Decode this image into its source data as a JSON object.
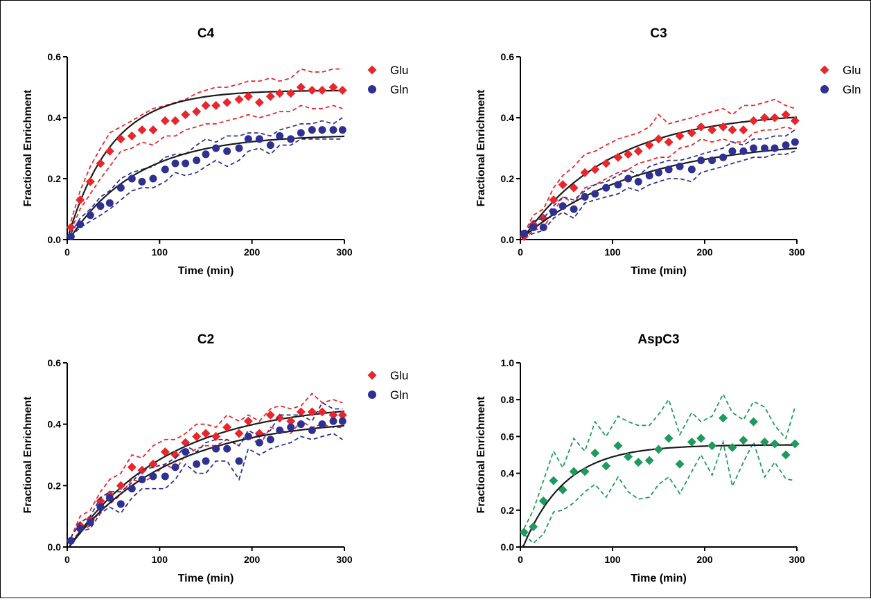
{
  "colors": {
    "glu": "#e8262b",
    "gln": "#2e3192",
    "asp": "#1e9a5e",
    "fit": "#1a1a1a"
  },
  "chart_data": [
    {
      "type": "scatter",
      "title": "C4",
      "xlabel": "Time (min)",
      "ylabel": "Fractional Enrichment",
      "xlim": [
        0,
        300
      ],
      "ylim": [
        0,
        0.6
      ],
      "xticks": [
        "0",
        "100",
        "200",
        "300"
      ],
      "yticks": [
        "0.0",
        "0.2",
        "0.4",
        "0.6"
      ],
      "legend_position": "right",
      "grid": false,
      "x": [
        4,
        14,
        25,
        36,
        46,
        58,
        70,
        81,
        93,
        106,
        117,
        128,
        140,
        150,
        161,
        173,
        186,
        196,
        208,
        220,
        230,
        242,
        253,
        265,
        276,
        288,
        298
      ],
      "series": [
        {
          "name": "Glu",
          "marker": "diamond",
          "color": "#e8262b",
          "y": [
            0.04,
            0.13,
            0.19,
            0.25,
            0.29,
            0.33,
            0.34,
            0.36,
            0.36,
            0.39,
            0.39,
            0.41,
            0.42,
            0.44,
            0.44,
            0.45,
            0.46,
            0.47,
            0.45,
            0.47,
            0.48,
            0.48,
            0.5,
            0.49,
            0.49,
            0.5,
            0.49
          ],
          "upper": [
            0.06,
            0.16,
            0.24,
            0.3,
            0.35,
            0.37,
            0.39,
            0.41,
            0.43,
            0.44,
            0.45,
            0.46,
            0.48,
            0.49,
            0.5,
            0.5,
            0.51,
            0.52,
            0.52,
            0.53,
            0.52,
            0.53,
            0.56,
            0.55,
            0.55,
            0.56,
            0.56
          ],
          "lower": [
            0.03,
            0.1,
            0.15,
            0.2,
            0.24,
            0.29,
            0.3,
            0.32,
            0.31,
            0.34,
            0.34,
            0.36,
            0.37,
            0.38,
            0.38,
            0.39,
            0.4,
            0.41,
            0.4,
            0.41,
            0.42,
            0.42,
            0.44,
            0.43,
            0.43,
            0.44,
            0.43
          ],
          "fit": {
            "plateau": 0.49,
            "rate": 0.021,
            "t0": 0
          }
        },
        {
          "name": "Gln",
          "marker": "circle",
          "color": "#2e3192",
          "y": [
            0.01,
            0.05,
            0.08,
            0.11,
            0.12,
            0.17,
            0.2,
            0.19,
            0.2,
            0.23,
            0.25,
            0.25,
            0.26,
            0.28,
            0.3,
            0.29,
            0.3,
            0.33,
            0.33,
            0.31,
            0.34,
            0.33,
            0.35,
            0.36,
            0.36,
            0.36,
            0.36
          ],
          "upper": [
            0.02,
            0.07,
            0.1,
            0.14,
            0.16,
            0.2,
            0.22,
            0.23,
            0.24,
            0.27,
            0.28,
            0.28,
            0.31,
            0.33,
            0.32,
            0.34,
            0.34,
            0.35,
            0.35,
            0.34,
            0.36,
            0.37,
            0.38,
            0.38,
            0.39,
            0.38,
            0.4
          ],
          "lower": [
            0.01,
            0.04,
            0.06,
            0.08,
            0.1,
            0.13,
            0.16,
            0.17,
            0.17,
            0.19,
            0.22,
            0.21,
            0.22,
            0.24,
            0.26,
            0.24,
            0.26,
            0.29,
            0.3,
            0.28,
            0.31,
            0.31,
            0.33,
            0.33,
            0.33,
            0.33,
            0.33
          ],
          "fit": {
            "plateau": 0.345,
            "rate": 0.0135,
            "t0": 2
          }
        }
      ]
    },
    {
      "type": "scatter",
      "title": "C3",
      "xlabel": "Time (min)",
      "ylabel": "Fractional Enrichment",
      "xlim": [
        0,
        300
      ],
      "ylim": [
        0,
        0.6
      ],
      "xticks": [
        "0",
        "100",
        "200",
        "300"
      ],
      "yticks": [
        "0.0",
        "0.2",
        "0.4",
        "0.6"
      ],
      "legend_position": "right",
      "grid": false,
      "x": [
        4,
        14,
        25,
        36,
        46,
        58,
        70,
        81,
        93,
        106,
        117,
        128,
        140,
        150,
        161,
        173,
        186,
        196,
        208,
        220,
        230,
        242,
        253,
        265,
        276,
        288,
        298
      ],
      "series": [
        {
          "name": "Glu",
          "marker": "diamond",
          "color": "#e8262b",
          "y": [
            0.01,
            0.05,
            0.07,
            0.13,
            0.18,
            0.17,
            0.22,
            0.23,
            0.25,
            0.27,
            0.28,
            0.29,
            0.31,
            0.33,
            0.32,
            0.34,
            0.35,
            0.37,
            0.36,
            0.37,
            0.36,
            0.36,
            0.39,
            0.4,
            0.4,
            0.41,
            0.39
          ],
          "upper": [
            0.02,
            0.08,
            0.1,
            0.17,
            0.21,
            0.24,
            0.28,
            0.29,
            0.31,
            0.33,
            0.34,
            0.35,
            0.37,
            0.41,
            0.38,
            0.39,
            0.4,
            0.41,
            0.42,
            0.43,
            0.41,
            0.44,
            0.44,
            0.45,
            0.46,
            0.44,
            0.43
          ],
          "lower": [
            0.0,
            0.03,
            0.04,
            0.09,
            0.14,
            0.12,
            0.17,
            0.18,
            0.2,
            0.22,
            0.23,
            0.25,
            0.26,
            0.27,
            0.27,
            0.3,
            0.31,
            0.33,
            0.32,
            0.33,
            0.32,
            0.32,
            0.35,
            0.36,
            0.36,
            0.37,
            0.36
          ],
          "fit": {
            "plateau": 0.42,
            "rate": 0.0105,
            "t0": 2
          }
        },
        {
          "name": "Gln",
          "marker": "circle",
          "color": "#2e3192",
          "y": [
            0.02,
            0.04,
            0.04,
            0.09,
            0.11,
            0.1,
            0.14,
            0.15,
            0.17,
            0.18,
            0.2,
            0.19,
            0.21,
            0.22,
            0.23,
            0.24,
            0.23,
            0.26,
            0.26,
            0.27,
            0.29,
            0.29,
            0.3,
            0.3,
            0.3,
            0.31,
            0.32
          ],
          "upper": [
            0.02,
            0.06,
            0.07,
            0.11,
            0.14,
            0.13,
            0.16,
            0.18,
            0.19,
            0.21,
            0.23,
            0.21,
            0.24,
            0.25,
            0.26,
            0.26,
            0.27,
            0.28,
            0.29,
            0.3,
            0.32,
            0.31,
            0.33,
            0.33,
            0.34,
            0.34,
            0.36
          ],
          "lower": [
            0.01,
            0.02,
            0.03,
            0.07,
            0.09,
            0.07,
            0.12,
            0.13,
            0.14,
            0.15,
            0.17,
            0.16,
            0.18,
            0.19,
            0.2,
            0.2,
            0.19,
            0.22,
            0.23,
            0.24,
            0.25,
            0.26,
            0.27,
            0.27,
            0.28,
            0.28,
            0.29
          ],
          "fit": {
            "plateau": 0.33,
            "rate": 0.008,
            "t0": 0
          }
        }
      ]
    },
    {
      "type": "scatter",
      "title": "C2",
      "xlabel": "Time (min)",
      "ylabel": "Fractional Enrichment",
      "xlim": [
        0,
        300
      ],
      "ylim": [
        0,
        0.6
      ],
      "xticks": [
        "0",
        "100",
        "200",
        "300"
      ],
      "yticks": [
        "0.0",
        "0.2",
        "0.4",
        "0.6"
      ],
      "legend_position": "right",
      "grid": false,
      "x": [
        4,
        14,
        25,
        36,
        46,
        58,
        70,
        81,
        93,
        106,
        117,
        128,
        140,
        150,
        161,
        173,
        186,
        196,
        208,
        220,
        230,
        242,
        253,
        265,
        276,
        288,
        298
      ],
      "series": [
        {
          "name": "Glu",
          "marker": "diamond",
          "color": "#e8262b",
          "y": [
            0.02,
            0.07,
            0.09,
            0.15,
            0.17,
            0.2,
            0.26,
            0.25,
            0.27,
            0.31,
            0.3,
            0.34,
            0.36,
            0.37,
            0.36,
            0.39,
            0.37,
            0.41,
            0.37,
            0.43,
            0.42,
            0.41,
            0.44,
            0.44,
            0.44,
            0.43,
            0.43
          ],
          "upper": [
            0.03,
            0.1,
            0.12,
            0.18,
            0.22,
            0.24,
            0.3,
            0.29,
            0.33,
            0.35,
            0.35,
            0.37,
            0.4,
            0.4,
            0.39,
            0.43,
            0.41,
            0.43,
            0.41,
            0.45,
            0.46,
            0.45,
            0.46,
            0.5,
            0.47,
            0.48,
            0.47
          ],
          "lower": [
            0.02,
            0.05,
            0.07,
            0.12,
            0.14,
            0.17,
            0.22,
            0.21,
            0.23,
            0.27,
            0.25,
            0.3,
            0.32,
            0.33,
            0.33,
            0.35,
            0.33,
            0.37,
            0.33,
            0.39,
            0.38,
            0.37,
            0.41,
            0.39,
            0.4,
            0.39,
            0.39
          ],
          "fit": {
            "plateau": 0.47,
            "rate": 0.0095,
            "t0": 2
          }
        },
        {
          "name": "Gln",
          "marker": "circle",
          "color": "#2e3192",
          "y": [
            0.02,
            0.06,
            0.08,
            0.13,
            0.16,
            0.14,
            0.19,
            0.22,
            0.23,
            0.23,
            0.26,
            0.31,
            0.27,
            0.28,
            0.32,
            0.32,
            0.28,
            0.36,
            0.34,
            0.35,
            0.38,
            0.39,
            0.4,
            0.38,
            0.4,
            0.41,
            0.41
          ],
          "upper": [
            0.03,
            0.08,
            0.1,
            0.16,
            0.18,
            0.18,
            0.21,
            0.25,
            0.26,
            0.27,
            0.29,
            0.33,
            0.31,
            0.34,
            0.35,
            0.35,
            0.33,
            0.38,
            0.36,
            0.38,
            0.43,
            0.43,
            0.43,
            0.41,
            0.47,
            0.45,
            0.45
          ],
          "lower": [
            0.01,
            0.05,
            0.06,
            0.11,
            0.13,
            0.11,
            0.16,
            0.19,
            0.19,
            0.19,
            0.22,
            0.27,
            0.24,
            0.24,
            0.28,
            0.28,
            0.22,
            0.32,
            0.3,
            0.32,
            0.33,
            0.34,
            0.36,
            0.35,
            0.36,
            0.37,
            0.35
          ],
          "fit": {
            "plateau": 0.42,
            "rate": 0.0095,
            "t0": 2
          }
        }
      ]
    },
    {
      "type": "scatter",
      "title": "AspC3",
      "xlabel": "Time (min)",
      "ylabel": "Fractional Enrichment",
      "xlim": [
        0,
        300
      ],
      "ylim": [
        0,
        1.0
      ],
      "xticks": [
        "0",
        "100",
        "200",
        "300"
      ],
      "yticks": [
        "0.0",
        "0.2",
        "0.4",
        "0.6",
        "0.8",
        "1.0"
      ],
      "legend_position": "none",
      "grid": false,
      "x": [
        4,
        14,
        25,
        36,
        46,
        58,
        70,
        81,
        93,
        106,
        117,
        128,
        140,
        150,
        161,
        173,
        186,
        196,
        208,
        220,
        230,
        242,
        253,
        265,
        276,
        288,
        298
      ],
      "series": [
        {
          "marker": "diamond",
          "color": "#1e9a5e",
          "y": [
            0.08,
            0.11,
            0.25,
            0.36,
            0.31,
            0.41,
            0.41,
            0.51,
            0.44,
            0.55,
            0.49,
            0.46,
            0.47,
            0.53,
            0.59,
            0.45,
            0.57,
            0.59,
            0.55,
            0.7,
            0.54,
            0.58,
            0.68,
            0.57,
            0.56,
            0.5,
            0.56
          ],
          "upper": [
            0.1,
            0.2,
            0.36,
            0.52,
            0.43,
            0.59,
            0.52,
            0.68,
            0.6,
            0.71,
            0.68,
            0.66,
            0.66,
            0.72,
            0.8,
            0.61,
            0.73,
            0.68,
            0.71,
            0.83,
            0.73,
            0.69,
            0.79,
            0.76,
            0.66,
            0.59,
            0.76
          ],
          "lower": [
            0.07,
            0.02,
            0.07,
            0.19,
            0.2,
            0.24,
            0.3,
            0.34,
            0.27,
            0.38,
            0.3,
            0.26,
            0.27,
            0.34,
            0.38,
            0.29,
            0.41,
            0.5,
            0.39,
            0.57,
            0.33,
            0.46,
            0.57,
            0.38,
            0.46,
            0.37,
            0.36
          ],
          "fit": {
            "plateau": 0.555,
            "rate": 0.022,
            "t0": 3
          }
        }
      ]
    }
  ]
}
